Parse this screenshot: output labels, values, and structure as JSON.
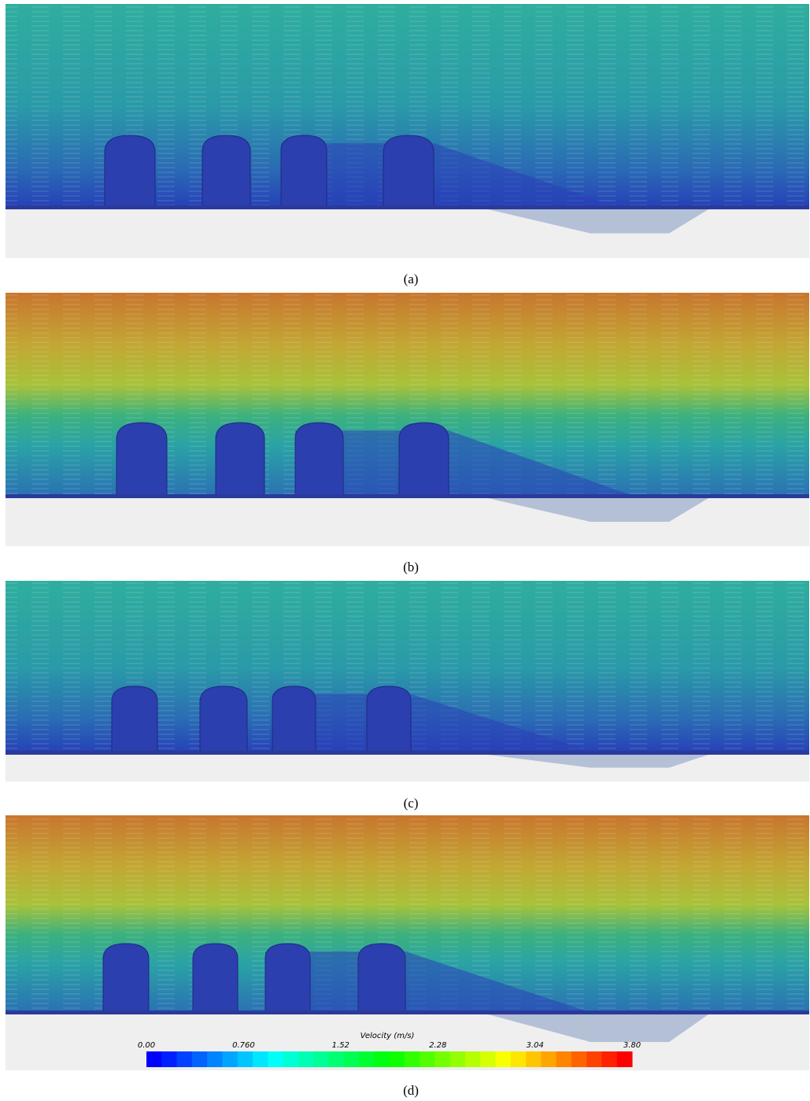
{
  "panels": [
    {
      "label": "(a)"
    },
    {
      "label": "(b)"
    },
    {
      "label": "(c)"
    },
    {
      "label": "(d)"
    }
  ],
  "colorbar": {
    "title": "Velocity (m/s)",
    "tick_labels": [
      "0.00",
      "0.760",
      "1.52",
      "2.28",
      "3.04",
      "3.80"
    ]
  }
}
